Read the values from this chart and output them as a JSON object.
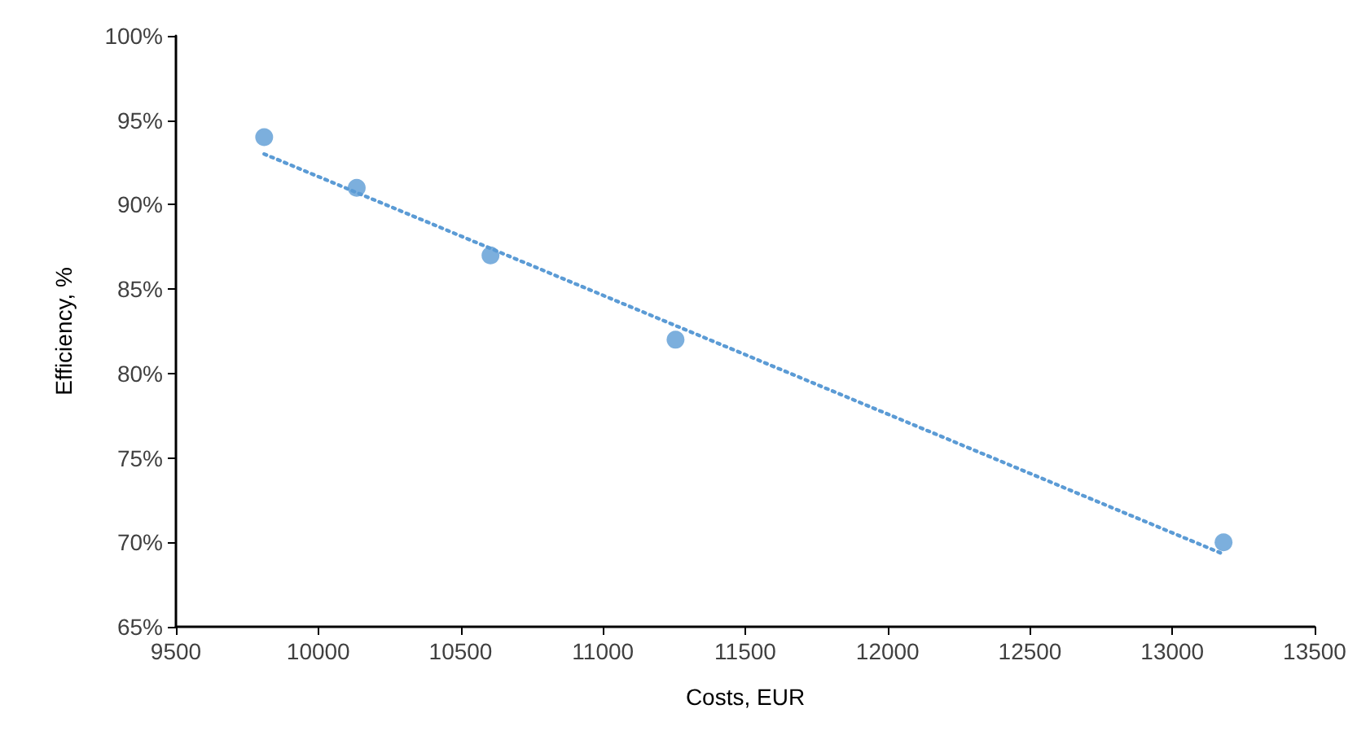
{
  "chart_data": {
    "type": "scatter",
    "xlabel": "Costs, EUR",
    "ylabel": "Efficiency, %",
    "xlim": [
      9500,
      13500
    ],
    "xticks": [
      9500,
      10000,
      10500,
      11000,
      11500,
      12000,
      12500,
      13000,
      13500
    ],
    "ylim": [
      65,
      100
    ],
    "yticks": [
      {
        "value": 65,
        "label": "65%"
      },
      {
        "value": 70,
        "label": "70%"
      },
      {
        "value": 75,
        "label": "75%"
      },
      {
        "value": 80,
        "label": "80%"
      },
      {
        "value": 85,
        "label": "85%"
      },
      {
        "value": 90,
        "label": "90%"
      },
      {
        "value": 95,
        "label": "95%"
      },
      {
        "value": 100,
        "label": "100%"
      }
    ],
    "grid": false,
    "marker": "circle",
    "series": [
      {
        "color": "#5b9bd5",
        "x": [
          9810,
          10135,
          10605,
          11255,
          13180
        ],
        "values": [
          94,
          91,
          87,
          82,
          70
        ]
      },
      {
        "type": "line",
        "color": "#5b9bd5",
        "line_style": "dotted",
        "marker": "none",
        "x": [
          9810,
          13180
        ],
        "values": [
          93.0,
          69.3
        ]
      }
    ]
  }
}
